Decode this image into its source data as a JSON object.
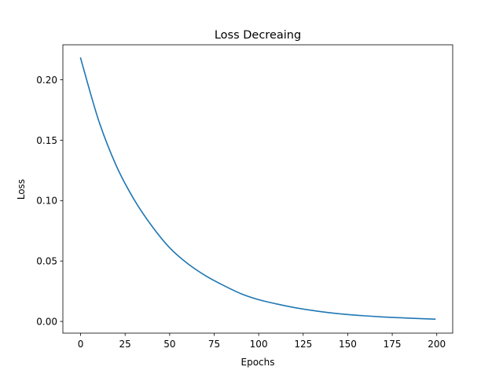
{
  "chart_data": {
    "type": "line",
    "title": "Loss Decreaing",
    "xlabel": "Epochs",
    "ylabel": "Loss",
    "xlim": [
      -9.95,
      208.95
    ],
    "ylim": [
      -0.0097,
      0.229
    ],
    "grid": false,
    "xticks": [
      0,
      25,
      50,
      75,
      100,
      125,
      150,
      175,
      200
    ],
    "xtick_labels": [
      "0",
      "25",
      "50",
      "75",
      "100",
      "125",
      "150",
      "175",
      "200"
    ],
    "yticks": [
      0.0,
      0.05,
      0.1,
      0.15,
      0.2
    ],
    "ytick_labels": [
      "0.00",
      "0.05",
      "0.10",
      "0.15",
      "0.20"
    ],
    "series": [
      {
        "color": "#1f77b4",
        "x": [
          0,
          10,
          20,
          30,
          40,
          50,
          60,
          70,
          80,
          90,
          100,
          110,
          120,
          130,
          140,
          150,
          160,
          170,
          180,
          190,
          199
        ],
        "y": [
          0.218,
          0.167,
          0.129,
          0.101,
          0.079,
          0.061,
          0.048,
          0.038,
          0.03,
          0.023,
          0.018,
          0.0145,
          0.0115,
          0.0091,
          0.0072,
          0.0057,
          0.0046,
          0.0037,
          0.003,
          0.0024,
          0.0019
        ]
      }
    ]
  }
}
